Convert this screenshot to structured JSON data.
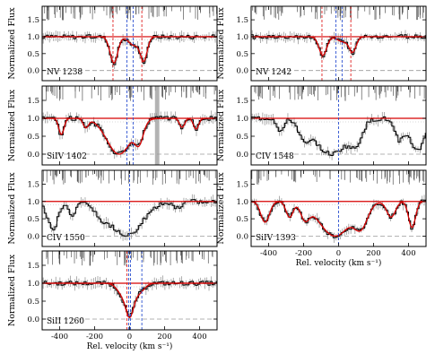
{
  "figure": {
    "ylabel": "Normalized Flux",
    "xlabel": "Rel. velocity  (km s⁻¹)",
    "colors": {
      "spectrum": "#000000",
      "error": "#8c8c8c",
      "model": "#d60000",
      "continuum": "#d60000",
      "zero_line": "#9a9a9a",
      "component_red": "#e02020",
      "component_blue": "#2a4fd0",
      "mask": "#9a9a9a"
    }
  },
  "chart_data": [
    {
      "type": "line",
      "ion": "NV 1238",
      "xlim": [
        -500,
        500
      ],
      "ylim": [
        -0.3,
        1.9
      ],
      "yticks": [
        "0.0",
        "0.5",
        "1.0",
        "1.5"
      ],
      "xticks": [
        "-400",
        "-200",
        "0",
        "200",
        "400"
      ],
      "show_xlabel": false,
      "model": true,
      "absorption": [
        {
          "v": -90,
          "depth": 0.78,
          "sigma": 22
        },
        {
          "v": 25,
          "depth": 0.25,
          "sigma": 30
        },
        {
          "v": 80,
          "depth": 0.72,
          "sigma": 20
        }
      ],
      "components": [
        {
          "v": -95,
          "color": "red"
        },
        {
          "v": -15,
          "color": "blue"
        },
        {
          "v": 20,
          "color": "blue"
        },
        {
          "v": 70,
          "color": "red"
        }
      ],
      "masked": []
    },
    {
      "type": "line",
      "ion": "NV 1242",
      "xlim": [
        -500,
        500
      ],
      "ylim": [
        -0.3,
        1.9
      ],
      "yticks": [
        "0.0",
        "0.5",
        "1.0",
        "1.5"
      ],
      "xticks": [
        "-400",
        "-200",
        "0",
        "200",
        "400"
      ],
      "show_xlabel": false,
      "model": true,
      "absorption": [
        {
          "v": -90,
          "depth": 0.55,
          "sigma": 22
        },
        {
          "v": 25,
          "depth": 0.15,
          "sigma": 30
        },
        {
          "v": 80,
          "depth": 0.45,
          "sigma": 20
        }
      ],
      "components": [
        {
          "v": -95,
          "color": "red"
        },
        {
          "v": -15,
          "color": "blue"
        },
        {
          "v": 20,
          "color": "blue"
        },
        {
          "v": 70,
          "color": "red"
        }
      ],
      "masked": []
    },
    {
      "type": "line",
      "ion": "SiIV 1402",
      "xlim": [
        -500,
        500
      ],
      "ylim": [
        -0.3,
        1.9
      ],
      "yticks": [
        "0.0",
        "0.5",
        "1.0",
        "1.5"
      ],
      "xticks": [
        "-400",
        "-200",
        "0",
        "200",
        "400"
      ],
      "show_xlabel": false,
      "model": true,
      "absorption": [
        {
          "v": -390,
          "depth": 0.45,
          "sigma": 15
        },
        {
          "v": -250,
          "depth": 0.25,
          "sigma": 15
        },
        {
          "v": -60,
          "depth": 1.0,
          "sigma": 70
        },
        {
          "v": 50,
          "depth": 0.7,
          "sigma": 25
        },
        {
          "v": 300,
          "depth": 0.25,
          "sigma": 15
        },
        {
          "v": 380,
          "depth": 0.3,
          "sigma": 15
        }
      ],
      "components": [
        {
          "v": -15,
          "color": "blue"
        },
        {
          "v": 20,
          "color": "blue"
        }
      ],
      "masked": [
        [
          145,
          170
        ]
      ]
    },
    {
      "type": "line",
      "ion": "CIV 1548",
      "xlim": [
        -500,
        500
      ],
      "ylim": [
        -0.3,
        1.9
      ],
      "yticks": [
        "0.0",
        "0.5",
        "1.0",
        "1.5"
      ],
      "xticks": [
        "-400",
        "-200",
        "0",
        "200",
        "400"
      ],
      "show_xlabel": false,
      "model": false,
      "absorption": [
        {
          "v": -330,
          "depth": 0.35,
          "sigma": 20
        },
        {
          "v": -190,
          "depth": 0.6,
          "sigma": 30
        },
        {
          "v": -40,
          "depth": 1.0,
          "sigma": 95
        },
        {
          "v": 90,
          "depth": 0.75,
          "sigma": 35
        },
        {
          "v": 350,
          "depth": 0.6,
          "sigma": 30
        },
        {
          "v": 450,
          "depth": 0.9,
          "sigma": 40
        }
      ],
      "components": [
        {
          "v": 0,
          "color": "blue"
        }
      ],
      "masked": []
    },
    {
      "type": "line",
      "ion": "CIV 1550",
      "xlim": [
        -500,
        500
      ],
      "ylim": [
        -0.3,
        1.9
      ],
      "yticks": [
        "0.0",
        "0.5",
        "1.0",
        "1.5"
      ],
      "xticks": [
        "-400",
        "-200",
        "0",
        "200",
        "400"
      ],
      "show_xlabel": false,
      "model": false,
      "absorption": [
        {
          "v": -440,
          "depth": 0.8,
          "sigma": 30
        },
        {
          "v": -330,
          "depth": 0.4,
          "sigma": 20
        },
        {
          "v": -150,
          "depth": 0.45,
          "sigma": 35
        },
        {
          "v": -20,
          "depth": 1.0,
          "sigma": 90
        },
        {
          "v": 280,
          "depth": 0.2,
          "sigma": 25
        }
      ],
      "components": [
        {
          "v": 0,
          "color": "blue"
        }
      ],
      "masked": []
    },
    {
      "type": "line",
      "ion": "SiIV 1393",
      "xlim": [
        -500,
        500
      ],
      "ylim": [
        -0.3,
        1.9
      ],
      "yticks": [
        "0.0",
        "0.5",
        "1.0",
        "1.5"
      ],
      "xticks": [
        "-400",
        "-200",
        "0",
        "200",
        "400"
      ],
      "show_xlabel": true,
      "model": true,
      "absorption": [
        {
          "v": -420,
          "depth": 0.6,
          "sigma": 25
        },
        {
          "v": -280,
          "depth": 0.45,
          "sigma": 20
        },
        {
          "v": -190,
          "depth": 0.5,
          "sigma": 25
        },
        {
          "v": -20,
          "depth": 1.0,
          "sigma": 90
        },
        {
          "v": 120,
          "depth": 0.8,
          "sigma": 40
        },
        {
          "v": 300,
          "depth": 0.45,
          "sigma": 25
        },
        {
          "v": 420,
          "depth": 0.75,
          "sigma": 20
        }
      ],
      "components": [
        {
          "v": 0,
          "color": "blue"
        }
      ],
      "masked": []
    },
    {
      "type": "line",
      "ion": "SiII 1260",
      "xlim": [
        -500,
        500
      ],
      "ylim": [
        -0.3,
        1.9
      ],
      "yticks": [
        "0.0",
        "0.5",
        "1.0",
        "1.5"
      ],
      "xticks": [
        "-400",
        "-200",
        "0",
        "200",
        "400"
      ],
      "show_xlabel": true,
      "model": true,
      "absorption": [
        {
          "v": 0,
          "depth": 0.95,
          "sigma": 25
        },
        {
          "v": -45,
          "depth": 0.25,
          "sigma": 30
        },
        {
          "v": 55,
          "depth": 0.25,
          "sigma": 30
        }
      ],
      "components": [
        {
          "v": -15,
          "color": "red"
        },
        {
          "v": -5,
          "color": "blue"
        },
        {
          "v": 5,
          "color": "blue"
        },
        {
          "v": 70,
          "color": "blue"
        }
      ],
      "masked": []
    }
  ]
}
